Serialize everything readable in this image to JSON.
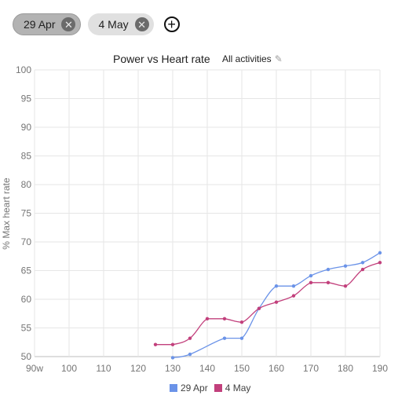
{
  "chips": [
    {
      "label": "29 Apr",
      "selected": true
    },
    {
      "label": "4 May",
      "selected": false
    }
  ],
  "icons": {
    "close": "close-circle-icon",
    "add": "add-circle-icon",
    "edit": "pencil-icon"
  },
  "filter": {
    "label": "All activities"
  },
  "chart_data": {
    "type": "line",
    "title": "Power vs Heart rate",
    "xlabel": "",
    "ylabel": "% Max heart rate",
    "xlim": [
      90,
      190
    ],
    "ylim": [
      50,
      100
    ],
    "x_ticks": [
      "90w",
      "100",
      "110",
      "120",
      "130",
      "140",
      "150",
      "160",
      "170",
      "180",
      "190"
    ],
    "y_ticks": [
      "50",
      "55",
      "60",
      "65",
      "70",
      "75",
      "80",
      "85",
      "90",
      "95",
      "100"
    ],
    "grid": true,
    "legend_position": "bottom",
    "series": [
      {
        "name": "29 Apr",
        "color": "#6b93e8",
        "x": [
          130,
          135,
          145,
          150,
          155,
          160,
          165,
          170,
          175,
          180,
          185,
          190
        ],
        "y": [
          49.8,
          50.4,
          53.2,
          53.2,
          58.4,
          62.3,
          62.3,
          64.1,
          65.2,
          65.8,
          66.4,
          68.1
        ]
      },
      {
        "name": "4 May",
        "color": "#c2407c",
        "x": [
          125,
          130,
          135,
          140,
          145,
          150,
          155,
          160,
          165,
          170,
          175,
          180,
          185,
          190
        ],
        "y": [
          52.1,
          52.1,
          53.2,
          56.6,
          56.6,
          56.0,
          58.4,
          59.5,
          60.6,
          62.9,
          62.9,
          62.3,
          65.2,
          66.4
        ]
      }
    ]
  }
}
